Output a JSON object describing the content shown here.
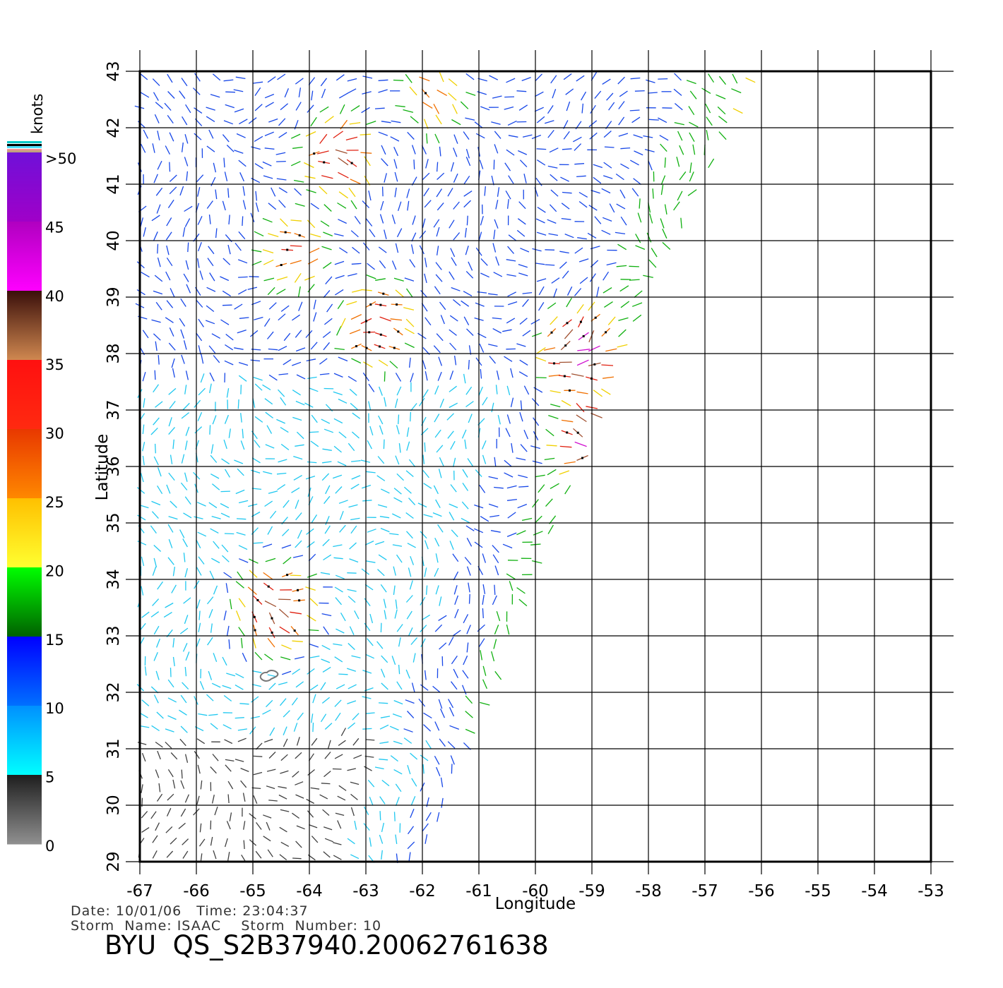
{
  "info": {
    "date_line": "Date: 10/01/06   Time: 23:04:37",
    "storm_line": "Storm  Name: ISAAC    Storm  Number: 10",
    "title": "BYU  QS_S2B37940.20062761638"
  },
  "chart_data": {
    "type": "wind-vector-map",
    "xlabel": "Longitude",
    "ylabel": "Latitude",
    "xlim": [
      -67,
      -53
    ],
    "ylim": [
      29,
      43
    ],
    "x_ticks": [
      "-67",
      "-66",
      "-65",
      "-64",
      "-63",
      "-62",
      "-61",
      "-60",
      "-59",
      "-58",
      "-57",
      "-56",
      "-55",
      "-54",
      "-53"
    ],
    "y_ticks": [
      "29",
      "30",
      "31",
      "32",
      "33",
      "34",
      "35",
      "36",
      "37",
      "38",
      "39",
      "40",
      "41",
      "42",
      "43"
    ],
    "grid": true,
    "swath": {
      "left_edge_lon": -67,
      "right_edge": [
        [
          -62,
          29
        ],
        [
          -60,
          34
        ],
        [
          -58,
          39
        ],
        [
          -56,
          43
        ]
      ]
    },
    "strong_wind_regions": [
      {
        "lon": -63.5,
        "lat": 41.5,
        "knots": 32
      },
      {
        "lon": -64.3,
        "lat": 39.8,
        "knots": 26
      },
      {
        "lon": -62.8,
        "lat": 38.5,
        "knots": 30
      },
      {
        "lon": -64.6,
        "lat": 33.5,
        "knots": 34
      },
      {
        "lon": -59.2,
        "lat": 38.0,
        "knots": 40
      },
      {
        "lon": -59.0,
        "lat": 36.5,
        "knots": 38
      },
      {
        "lon": -61.8,
        "lat": 42.6,
        "knots": 23
      }
    ],
    "island": {
      "lon": -64.75,
      "lat": 32.3
    }
  },
  "legend": {
    "unit": "knots",
    "labels": [
      ">50",
      "45",
      "40",
      "35",
      "30",
      "25",
      "20",
      "15",
      "10",
      "5",
      "0"
    ],
    "band_colors": [
      [
        "#6f10d8",
        "#a000c8"
      ],
      [
        "#b000c0",
        "#ff00ff"
      ],
      [
        "#3a0f0a",
        "#d08850"
      ],
      [
        "#ff1010",
        "#ff2a10"
      ],
      [
        "#e83800",
        "#ff8800"
      ],
      [
        "#ffc000",
        "#ffff30"
      ],
      [
        "#00ff00",
        "#006000"
      ],
      [
        "#0000ff",
        "#0070ff"
      ],
      [
        "#0090ff",
        "#00ffff"
      ],
      [
        "#1e1e1e",
        "#909090"
      ]
    ],
    "speed_colors": [
      {
        "max": 5,
        "color": "#404040"
      },
      {
        "max": 10,
        "color": "#20c8f0"
      },
      {
        "max": 15,
        "color": "#1848e8"
      },
      {
        "max": 20,
        "color": "#10b010"
      },
      {
        "max": 25,
        "color": "#f0d000"
      },
      {
        "max": 30,
        "color": "#f07000"
      },
      {
        "max": 35,
        "color": "#e02010"
      },
      {
        "max": 40,
        "color": "#a05030"
      },
      {
        "max": 45,
        "color": "#d010d0"
      },
      {
        "max": 999,
        "color": "#7020d0"
      }
    ]
  }
}
